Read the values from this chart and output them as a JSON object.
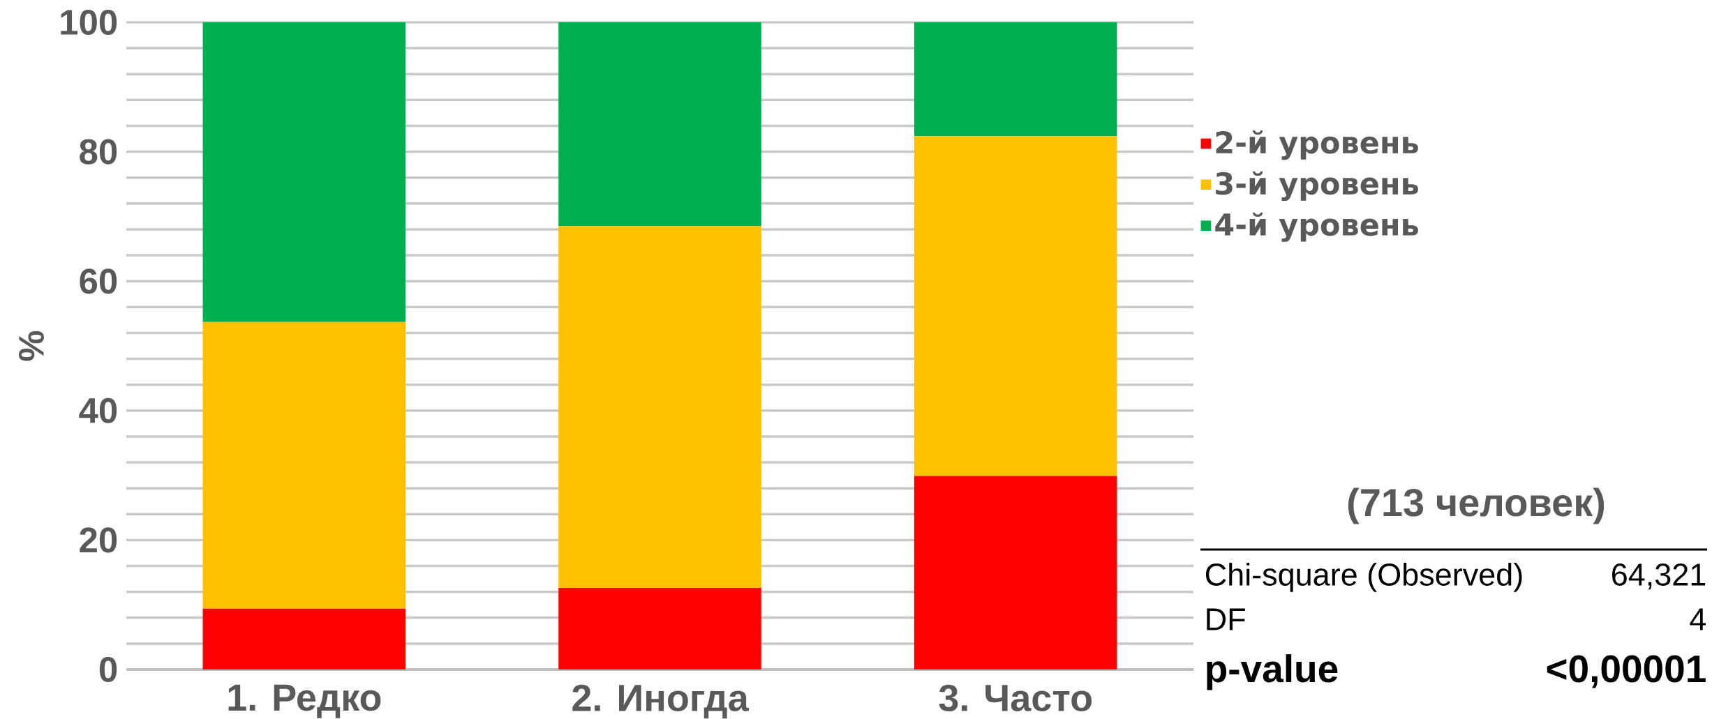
{
  "chart_data": {
    "type": "bar",
    "stacked": true,
    "ylabel": "%",
    "categories": [
      "1. Редко",
      "2. Иногда",
      "3. Часто"
    ],
    "series": [
      {
        "name": "2-й уровень",
        "color": "#ff0000",
        "values": [
          9.4,
          12.6,
          29.9
        ]
      },
      {
        "name": "3-й уровень",
        "color": "#ffc000",
        "values": [
          44.3,
          55.9,
          52.5
        ]
      },
      {
        "name": "4-й уровень",
        "color": "#00b050",
        "values": [
          46.3,
          31.5,
          17.6
        ]
      }
    ],
    "ylim": [
      0,
      100
    ],
    "yticks": [
      0,
      {
        "value": 4,
        "label": null
      },
      {
        "value": 8,
        "label": null
      },
      {
        "value": 12,
        "label": null
      },
      {
        "value": 16,
        "label": null
      },
      20,
      {
        "value": 24,
        "label": null
      },
      {
        "value": 28,
        "label": null
      },
      {
        "value": 32,
        "label": null
      },
      {
        "value": 36,
        "label": null
      },
      40,
      {
        "value": 44,
        "label": null
      },
      {
        "value": 48,
        "label": null
      },
      {
        "value": 52,
        "label": null
      },
      {
        "value": 56,
        "label": null
      },
      60,
      {
        "value": 64,
        "label": null
      },
      {
        "value": 68,
        "label": null
      },
      {
        "value": 72,
        "label": null
      },
      {
        "value": 76,
        "label": null
      },
      80,
      {
        "value": 84,
        "label": null
      },
      {
        "value": 88,
        "label": null
      },
      {
        "value": 92,
        "label": null
      },
      {
        "value": 96,
        "label": null
      },
      100
    ],
    "grid": "y",
    "legend": "right",
    "annotations": [
      "(713 человек)",
      "Chi-square (Observed)",
      "64,321",
      "DF",
      "4",
      "p-value",
      "<0,00001"
    ]
  }
}
